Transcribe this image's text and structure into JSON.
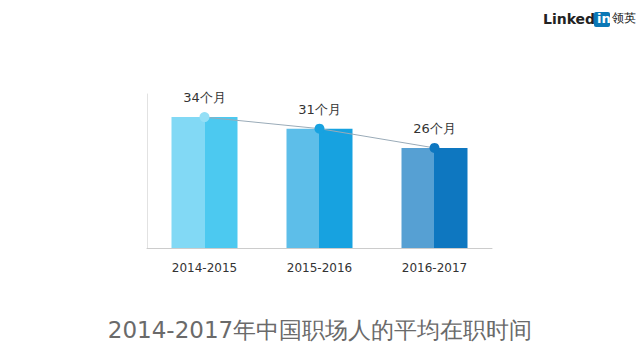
{
  "chart_data": {
    "type": "bar",
    "title": "2014-2017年中国职场人的平均在职时间",
    "logo": [
      "Linked",
      "in",
      "领英"
    ],
    "categories": [
      "2014-2015",
      "2015-2016",
      "2016-2017"
    ],
    "values": [
      34,
      31,
      26
    ],
    "value_labels": [
      "34个月",
      "31个月",
      "26个月"
    ],
    "colors": [
      "#4cc9f0",
      "#17a2e0",
      "#0e77c0"
    ],
    "ylim": [
      0,
      40
    ],
    "tick_labels": "x",
    "grid": false,
    "data_labels": true,
    "marker": "circle",
    "line_style": "solid"
  }
}
